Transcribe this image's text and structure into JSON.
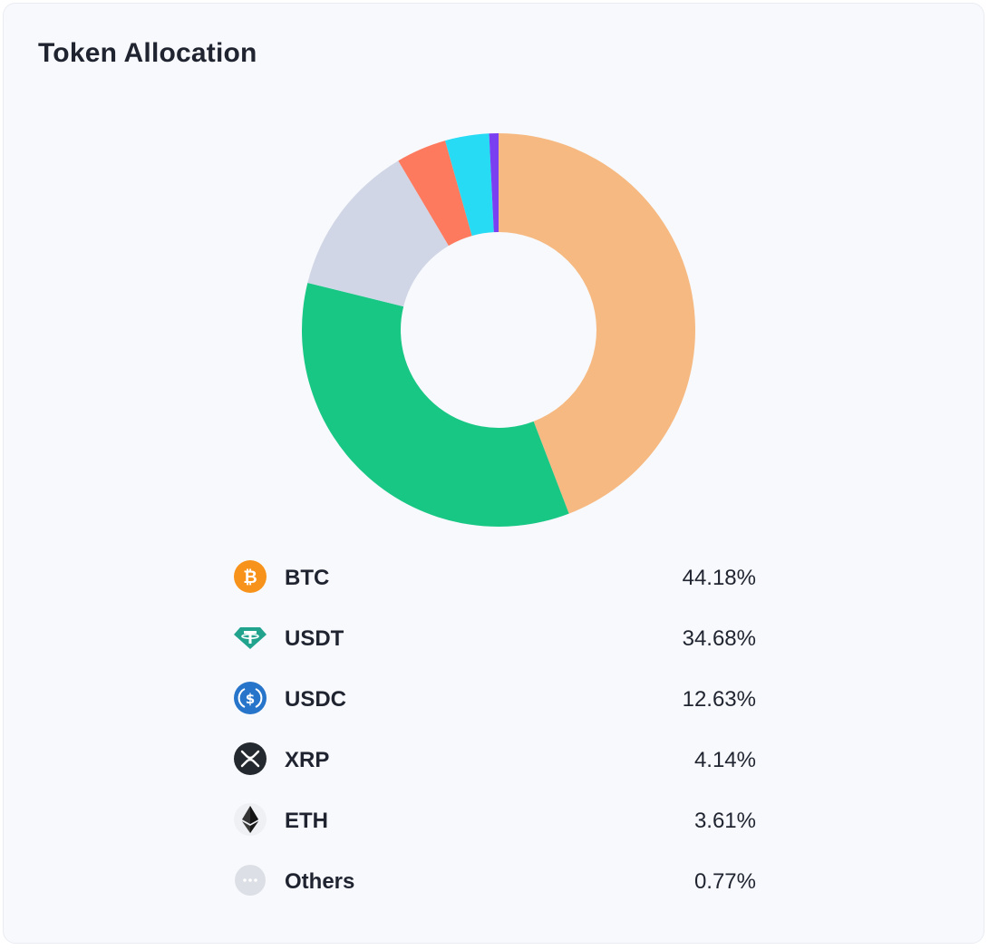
{
  "card": {
    "title": "Token Allocation"
  },
  "chart_data": {
    "type": "pie",
    "variant": "donut",
    "title": "",
    "categories": [
      "BTC",
      "USDT",
      "USDC",
      "XRP",
      "ETH",
      "Others"
    ],
    "values": [
      44.18,
      34.68,
      12.63,
      4.14,
      3.61,
      0.77
    ],
    "unit": "%",
    "start_angle_deg": 0,
    "direction": "clockwise",
    "colors": [
      "#f5b981",
      "#19c785",
      "#d0d6e6",
      "#fd7a5f",
      "#26dbf3",
      "#7b3ff2"
    ]
  },
  "legend": {
    "items": [
      {
        "label": "BTC",
        "value": "44.18%",
        "icon": "btc-icon"
      },
      {
        "label": "USDT",
        "value": "34.68%",
        "icon": "usdt-icon"
      },
      {
        "label": "USDC",
        "value": "12.63%",
        "icon": "usdc-icon"
      },
      {
        "label": "XRP",
        "value": "4.14%",
        "icon": "xrp-icon"
      },
      {
        "label": "ETH",
        "value": "3.61%",
        "icon": "eth-icon"
      },
      {
        "label": "Others",
        "value": "0.77%",
        "icon": "more-icon"
      }
    ]
  }
}
